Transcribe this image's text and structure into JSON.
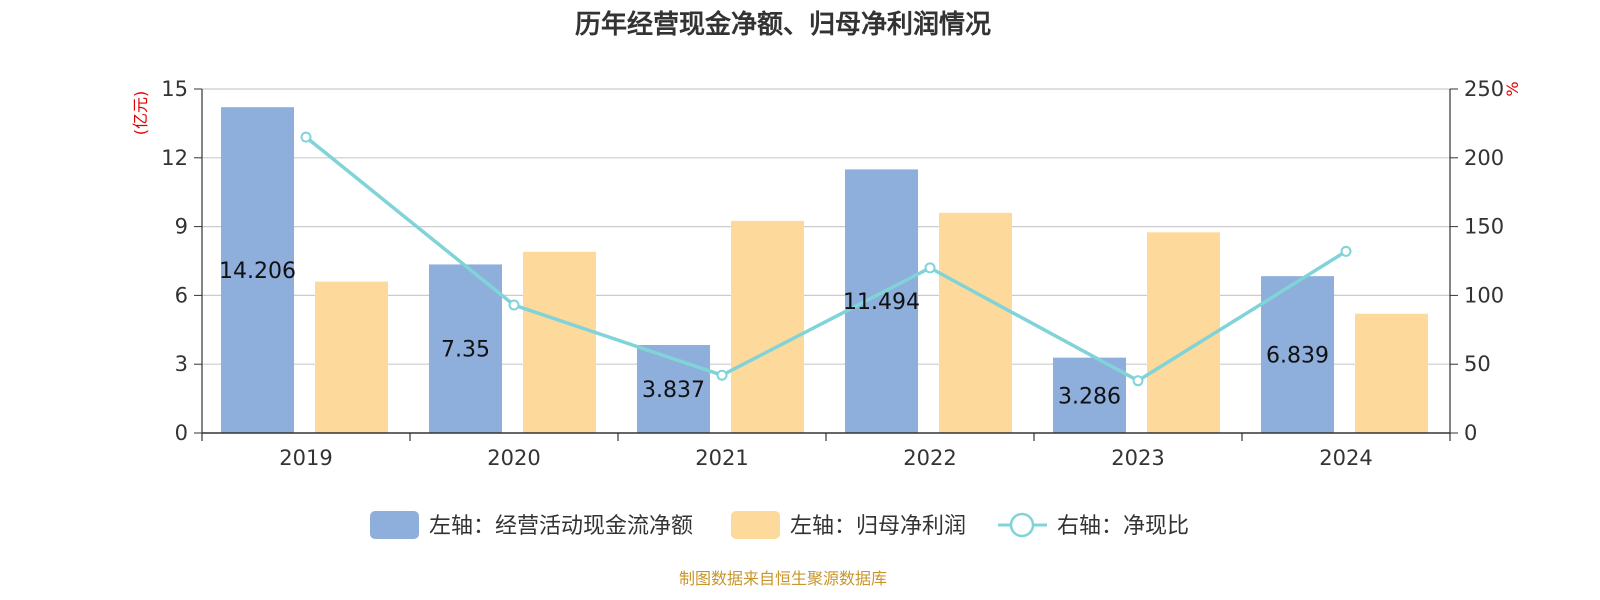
{
  "chart_data": {
    "type": "bar",
    "title": "历年经营现金净额、归母净利润情况",
    "categories": [
      "2019",
      "2020",
      "2021",
      "2022",
      "2023",
      "2024"
    ],
    "left_axis": {
      "unit": "(亿元)",
      "ylim": [
        0,
        15
      ],
      "ticks": [
        "0",
        "3",
        "6",
        "9",
        "12",
        "15"
      ]
    },
    "right_axis": {
      "unit": "%",
      "ylim": [
        0,
        250
      ],
      "ticks": [
        "0",
        "50",
        "100",
        "150",
        "200",
        "250"
      ]
    },
    "series": [
      {
        "name": "左轴：经营活动现金流净额",
        "type": "bar",
        "axis": "left",
        "color": "#8eaedb",
        "values": [
          14.206,
          7.35,
          3.837,
          11.494,
          3.286,
          6.839
        ],
        "labels": [
          "14.206",
          "7.35",
          "3.837",
          "11.494",
          "3.286",
          "6.839"
        ]
      },
      {
        "name": "左轴：归母净利润",
        "type": "bar",
        "axis": "left",
        "color": "#fdd99b",
        "values": [
          6.6,
          7.9,
          9.25,
          9.6,
          8.75,
          5.2
        ]
      },
      {
        "name": "右轴：净现比",
        "type": "line",
        "axis": "right",
        "color": "#80d4d8",
        "values": [
          215,
          93,
          42,
          120,
          38,
          132
        ]
      }
    ],
    "grid": true,
    "legend": "bottom"
  },
  "source": "制图数据来自恒生聚源数据库"
}
